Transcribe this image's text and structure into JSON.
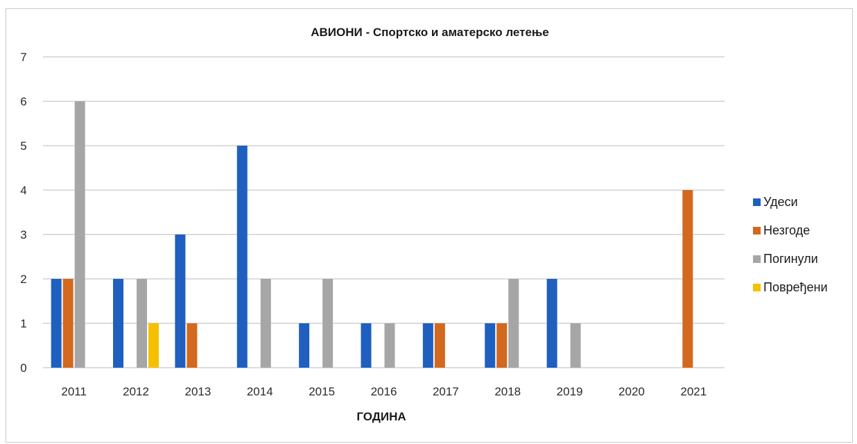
{
  "chart_data": {
    "type": "bar",
    "title": "АВИОНИ - Спортско и аматерско летење",
    "xlabel": "ГОДИНА",
    "ylabel": "",
    "ylim": [
      0,
      7
    ],
    "yticks": [
      0,
      1,
      2,
      3,
      4,
      5,
      6,
      7
    ],
    "grid": true,
    "legend_position": "right",
    "categories": [
      "2011",
      "2012",
      "2013",
      "2014",
      "2015",
      "2016",
      "2017",
      "2018",
      "2019",
      "2020",
      "2021"
    ],
    "series": [
      {
        "name": "Удеси",
        "color": "#1f5fbf",
        "values": [
          2,
          2,
          3,
          5,
          1,
          1,
          1,
          1,
          2,
          0,
          0
        ]
      },
      {
        "name": "Незгоде",
        "color": "#d2691e",
        "values": [
          2,
          0,
          1,
          0,
          0,
          0,
          1,
          1,
          0,
          0,
          4
        ]
      },
      {
        "name": "Погинули",
        "color": "#a6a6a6",
        "values": [
          6,
          2,
          0,
          2,
          2,
          1,
          0,
          2,
          1,
          0,
          0
        ]
      },
      {
        "name": "Повређени",
        "color": "#f5c000",
        "values": [
          0,
          1,
          0,
          0,
          0,
          0,
          0,
          0,
          0,
          0,
          0
        ]
      }
    ]
  }
}
